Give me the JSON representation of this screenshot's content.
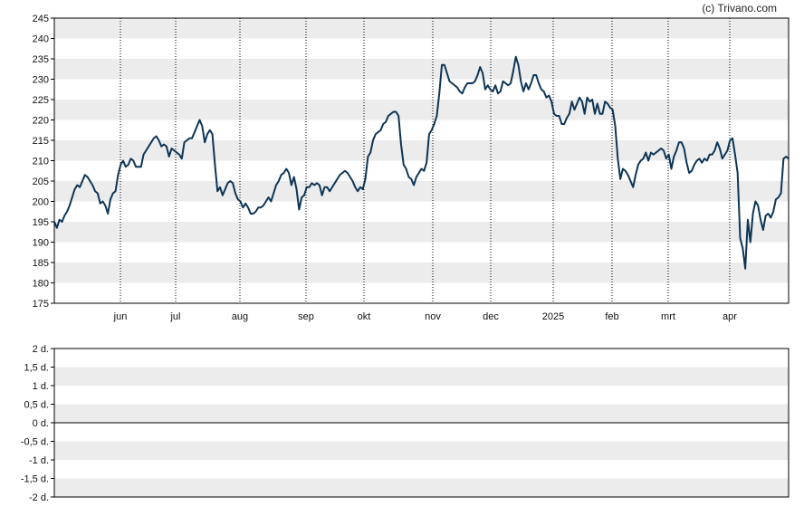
{
  "watermark": "(c) Trivano.com",
  "colors": {
    "line": "#0d3557",
    "band": "#ececec",
    "grid": "#000000",
    "frame": "#000000"
  },
  "chart_data": [
    {
      "type": "line",
      "title": "",
      "xlabel": "",
      "ylabel": "",
      "ylim": [
        175,
        245
      ],
      "yticks": [
        175,
        180,
        185,
        190,
        195,
        200,
        205,
        210,
        215,
        220,
        225,
        230,
        235,
        240,
        245
      ],
      "xtick_labels": [
        "jun",
        "jul",
        "aug",
        "sep",
        "okt",
        "nov",
        "dec",
        "2025",
        "feb",
        "mrt",
        "apr"
      ],
      "grid": "vertical dotted lines at month starts, alternating horizontal bands",
      "series": [
        {
          "values": [
            195.0,
            193.5,
            195.5,
            195.0,
            196.5,
            197.5,
            199.0,
            201.0,
            203.0,
            204.0,
            203.5,
            205.0,
            206.5,
            206.0,
            205.0,
            204.0,
            202.5,
            202.0,
            199.5,
            200.0,
            199.0,
            197.0,
            200.5,
            202.0,
            202.5,
            206.5,
            209.0,
            210.0,
            208.5,
            209.0,
            210.5,
            210.0,
            208.5,
            208.5,
            208.5,
            211.5,
            212.5,
            213.5,
            214.5,
            215.5,
            216.0,
            215.0,
            213.5,
            214.0,
            213.5,
            211.0,
            213.0,
            212.5,
            212.0,
            211.5,
            210.5,
            214.5,
            215.0,
            215.5,
            215.5,
            217.0,
            218.5,
            220.0,
            218.5,
            214.5,
            216.5,
            217.5,
            216.5,
            209.0,
            202.5,
            203.5,
            201.5,
            203.0,
            204.5,
            205.0,
            204.5,
            202.0,
            200.5,
            200.0,
            198.5,
            199.5,
            198.5,
            197.0,
            197.0,
            197.5,
            198.5,
            198.5,
            199.0,
            200.0,
            201.0,
            200.0,
            202.0,
            204.0,
            205.0,
            206.5,
            207.0,
            208.0,
            207.0,
            204.0,
            206.0,
            203.0,
            198.0,
            201.0,
            201.5,
            203.5,
            203.5,
            204.5,
            204.0,
            204.5,
            204.0,
            201.5,
            203.5,
            203.5,
            202.5,
            203.5,
            204.5,
            205.5,
            206.5,
            207.0,
            207.5,
            207.0,
            206.0,
            205.0,
            203.5,
            202.5,
            203.5,
            203.0,
            205.5,
            211.0,
            212.0,
            215.0,
            216.5,
            217.0,
            217.5,
            219.0,
            219.5,
            221.0,
            221.5,
            222.0,
            222.0,
            221.0,
            214.0,
            209.0,
            208.0,
            206.0,
            205.5,
            204.0,
            206.0,
            207.0,
            208.0,
            207.5,
            209.5,
            216.5,
            217.5,
            219.0,
            221.0,
            226.5,
            233.5,
            233.5,
            231.5,
            229.5,
            229.0,
            228.5,
            228.0,
            227.0,
            226.5,
            228.0,
            229.0,
            229.0,
            229.0,
            229.5,
            231.0,
            233.0,
            231.5,
            227.5,
            228.5,
            227.5,
            227.0,
            228.5,
            226.5,
            227.0,
            229.5,
            229.0,
            228.5,
            229.0,
            232.0,
            235.5,
            233.5,
            229.5,
            227.0,
            229.0,
            227.5,
            229.0,
            231.0,
            231.0,
            229.0,
            227.5,
            227.0,
            225.5,
            226.0,
            224.5,
            221.5,
            221.0,
            221.0,
            219.0,
            219.0,
            220.5,
            221.5,
            224.5,
            222.5,
            224.0,
            225.5,
            224.5,
            221.5,
            225.5,
            224.5,
            225.0,
            221.5,
            224.0,
            221.5,
            221.5,
            224.5,
            224.0,
            223.0,
            222.5,
            218.5,
            210.5,
            205.5,
            208.0,
            207.5,
            206.5,
            205.0,
            203.5,
            206.5,
            209.0,
            210.0,
            210.5,
            212.0,
            210.0,
            212.0,
            211.5,
            212.0,
            212.5,
            213.0,
            212.5,
            210.5,
            211.5,
            208.0,
            211.0,
            212.5,
            214.5,
            214.5,
            213.0,
            209.5,
            207.0,
            207.5,
            209.0,
            210.0,
            210.5,
            209.5,
            210.5,
            210.0,
            211.5,
            211.5,
            212.5,
            214.5,
            213.0,
            210.5,
            211.5,
            212.5,
            215.0,
            215.5,
            211.5,
            207.0,
            191.0,
            188.5,
            183.5,
            195.5,
            190.0,
            197.0,
            200.0,
            199.0,
            195.5,
            193.0,
            196.5,
            197.0,
            196.0,
            197.5,
            200.5,
            201.0,
            202.0,
            210.5,
            211.0,
            210.5
          ]
        }
      ]
    },
    {
      "type": "line",
      "title": "",
      "ylim": [
        -2,
        2
      ],
      "ytick_labels": [
        "2 d.",
        "1,5 d.",
        "1 d.",
        "0,5 d.",
        "0 d.",
        "-0,5 d.",
        "-1 d.",
        "-1,5 d.",
        "-2 d."
      ],
      "series": []
    }
  ]
}
